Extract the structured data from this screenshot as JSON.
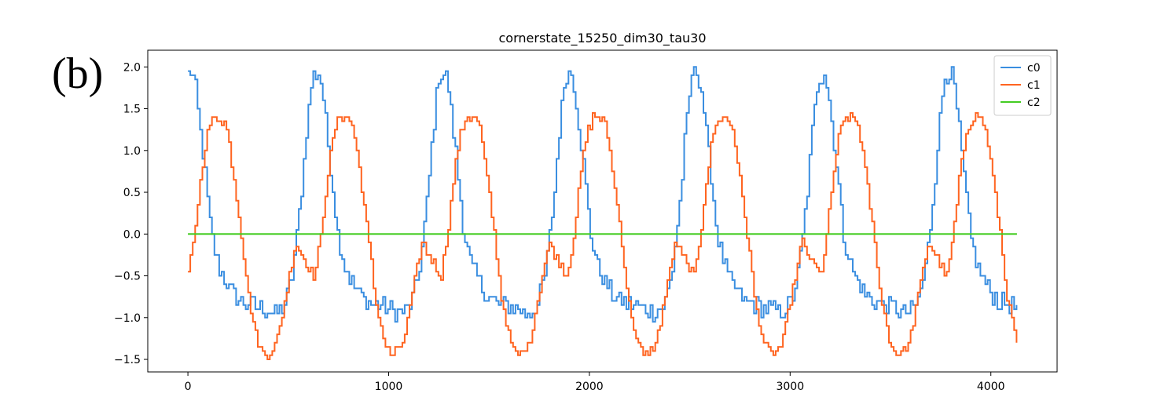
{
  "panel_label": "(b)",
  "chart_data": {
    "type": "line",
    "title": "cornerstate_15250_dim30_tau30",
    "xlabel": "",
    "ylabel": "",
    "xlim": [
      -200,
      4330
    ],
    "ylim": [
      -1.65,
      2.2
    ],
    "x_ticks": [
      0,
      1000,
      2000,
      3000,
      4000
    ],
    "x_tick_labels": [
      "0",
      "1000",
      "2000",
      "3000",
      "4000"
    ],
    "y_ticks": [
      2.0,
      1.5,
      1.0,
      0.5,
      0.0,
      -0.5,
      -1.0,
      -1.5
    ],
    "y_tick_labels": [
      "2.0",
      "1.5",
      "1.0",
      "0.5",
      "0.0",
      "−0.5",
      "−1.0",
      "−1.5"
    ],
    "legend_position": "top-right",
    "x_range": [
      0,
      4130
    ],
    "period": 630,
    "series": [
      {
        "name": "c0",
        "color": "#3a8ee0",
        "waveform": {
          "phase": [
            0.0,
            0.03,
            0.06,
            0.1,
            0.14,
            0.18,
            0.24,
            0.32,
            0.4,
            0.5,
            0.6,
            0.68,
            0.76,
            0.82,
            0.86,
            0.9,
            0.93,
            0.96,
            0.98,
            1.0
          ],
          "value": [
            1.9,
            1.95,
            1.7,
            1.15,
            0.6,
            0.0,
            -0.4,
            -0.65,
            -0.8,
            -0.85,
            -0.9,
            -0.95,
            -0.85,
            -0.5,
            0.0,
            0.6,
            1.2,
            1.6,
            1.9,
            1.9
          ]
        },
        "jitter": 0.12
      },
      {
        "name": "c1",
        "color": "#ff6420",
        "waveform": {
          "phase": [
            0.0,
            0.05,
            0.1,
            0.15,
            0.2,
            0.25,
            0.3,
            0.35,
            0.42,
            0.48,
            0.55,
            0.6,
            0.65,
            0.7,
            0.75,
            0.8,
            0.85,
            0.92,
            1.0
          ],
          "value": [
            -0.5,
            0.0,
            0.7,
            1.2,
            1.4,
            1.4,
            1.3,
            0.8,
            0.0,
            -0.8,
            -1.3,
            -1.45,
            -1.4,
            -1.3,
            -0.9,
            -0.5,
            -0.1,
            -0.3,
            -0.5
          ]
        },
        "jitter": 0.06
      },
      {
        "name": "c2",
        "color": "#44cc22",
        "values_constant": 0.0
      }
    ]
  }
}
